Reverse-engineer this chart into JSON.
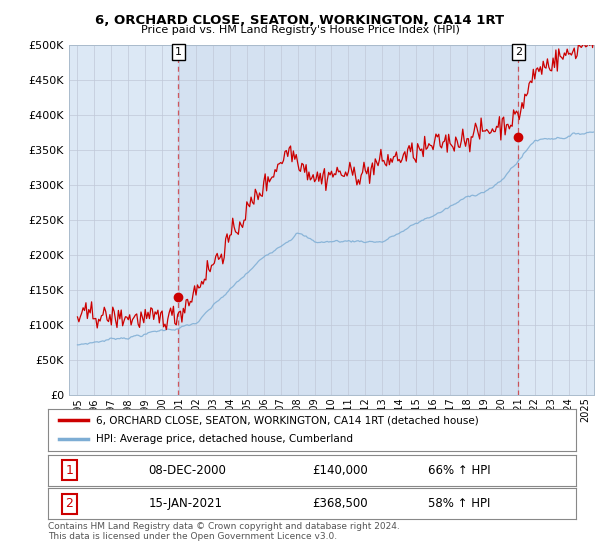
{
  "title": "6, ORCHARD CLOSE, SEATON, WORKINGTON, CA14 1RT",
  "subtitle": "Price paid vs. HM Land Registry's House Price Index (HPI)",
  "ylabel_ticks": [
    0,
    50000,
    100000,
    150000,
    200000,
    250000,
    300000,
    350000,
    400000,
    450000,
    500000
  ],
  "ylim": [
    0,
    500000
  ],
  "xlim_start": 1994.5,
  "xlim_end": 2025.5,
  "legend_line1": "6, ORCHARD CLOSE, SEATON, WORKINGTON, CA14 1RT (detached house)",
  "legend_line2": "HPI: Average price, detached house, Cumberland",
  "label1_date": "08-DEC-2000",
  "label1_price": "£140,000",
  "label1_pct": "66% ↑ HPI",
  "label2_date": "15-JAN-2021",
  "label2_price": "£368,500",
  "label2_pct": "58% ↑ HPI",
  "footer": "Contains HM Land Registry data © Crown copyright and database right 2024.\nThis data is licensed under the Open Government Licence v3.0.",
  "red_color": "#cc0000",
  "blue_color": "#7dadd4",
  "background_color": "#dce8f5",
  "shaded_color": "#ccdcee",
  "plot_bg": "#ffffff",
  "grid_color": "#c0c8d8"
}
